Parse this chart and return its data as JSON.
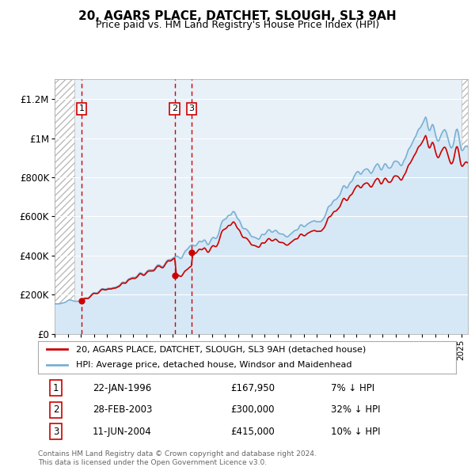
{
  "title": "20, AGARS PLACE, DATCHET, SLOUGH, SL3 9AH",
  "subtitle": "Price paid vs. HM Land Registry's House Price Index (HPI)",
  "legend_line1": "20, AGARS PLACE, DATCHET, SLOUGH, SL3 9AH (detached house)",
  "legend_line2": "HPI: Average price, detached house, Windsor and Maidenhead",
  "footer1": "Contains HM Land Registry data © Crown copyright and database right 2024.",
  "footer2": "This data is licensed under the Open Government Licence v3.0.",
  "transactions": [
    {
      "num": 1,
      "date": "22-JAN-1996",
      "price": 167950,
      "pct": "7% ↓ HPI",
      "year": 1996.06
    },
    {
      "num": 2,
      "date": "28-FEB-2003",
      "price": 300000,
      "pct": "32% ↓ HPI",
      "year": 2003.16
    },
    {
      "num": 3,
      "date": "11-JUN-2004",
      "price": 415000,
      "pct": "10% ↓ HPI",
      "year": 2004.44
    }
  ],
  "price_color": "#cc0000",
  "hpi_color": "#7ab0d4",
  "hpi_fill_color": "#d6e8f5",
  "bg_color": "#e8f0f8",
  "ylim": [
    0,
    1300000
  ],
  "yticks": [
    0,
    200000,
    400000,
    600000,
    800000,
    1000000,
    1200000
  ],
  "ytick_labels": [
    "£0",
    "£200K",
    "£400K",
    "£600K",
    "£800K",
    "£1M",
    "£1.2M"
  ],
  "xmin": 1994.0,
  "xmax": 2025.5,
  "data_start": 1995.5,
  "data_end": 2025.0
}
